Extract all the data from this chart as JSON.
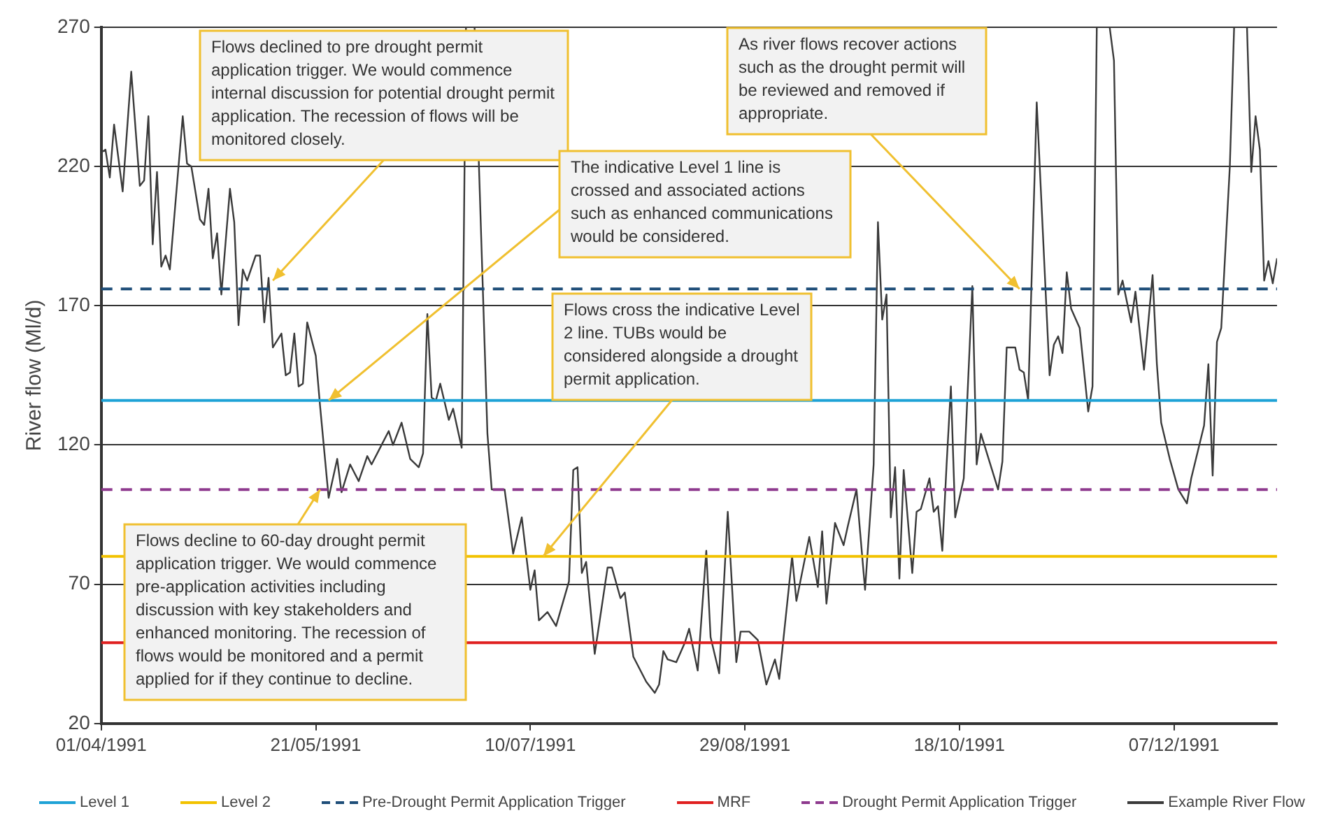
{
  "chart_data": {
    "type": "line",
    "ylabel": "River flow (Ml/d)",
    "xlim": [
      "1991-04-01",
      "1991-12-31"
    ],
    "xticks": [
      {
        "value": "1991-04-01",
        "label": "01/04/1991"
      },
      {
        "value": "1991-05-21",
        "label": "21/05/1991"
      },
      {
        "value": "1991-07-10",
        "label": "10/07/1991"
      },
      {
        "value": "1991-08-29",
        "label": "29/08/1991"
      },
      {
        "value": "1991-10-18",
        "label": "18/10/1991"
      },
      {
        "value": "1991-12-07",
        "label": "07/12/1991"
      }
    ],
    "ylim": [
      20,
      270
    ],
    "yticks": [
      20,
      70,
      120,
      170,
      220,
      270
    ],
    "grid": "y",
    "legend": "bottom",
    "x": [
      "1991-04-01",
      "1991-04-02",
      "1991-04-03",
      "1991-04-04",
      "1991-04-06",
      "1991-04-08",
      "1991-04-10",
      "1991-04-11",
      "1991-04-12",
      "1991-04-13",
      "1991-04-14",
      "1991-04-15",
      "1991-04-16",
      "1991-04-17",
      "1991-04-20",
      "1991-04-21",
      "1991-04-22",
      "1991-04-24",
      "1991-04-25",
      "1991-04-26",
      "1991-04-27",
      "1991-04-28",
      "1991-04-29",
      "1991-05-01",
      "1991-05-02",
      "1991-05-03",
      "1991-05-04",
      "1991-05-05",
      "1991-05-07",
      "1991-05-08",
      "1991-05-09",
      "1991-05-10",
      "1991-05-11",
      "1991-05-13",
      "1991-05-14",
      "1991-05-15",
      "1991-05-16",
      "1991-05-17",
      "1991-05-18",
      "1991-05-19",
      "1991-05-21",
      "1991-05-22",
      "1991-05-24",
      "1991-05-26",
      "1991-05-27",
      "1991-05-29",
      "1991-05-31",
      "1991-06-02",
      "1991-06-03",
      "1991-06-05",
      "1991-06-07",
      "1991-06-08",
      "1991-06-10",
      "1991-06-12",
      "1991-06-14",
      "1991-06-15",
      "1991-06-16",
      "1991-06-17",
      "1991-06-18",
      "1991-06-19",
      "1991-06-21",
      "1991-06-22",
      "1991-06-24",
      "1991-06-25",
      "1991-06-26",
      "1991-06-27",
      "1991-06-30",
      "1991-07-01",
      "1991-07-04",
      "1991-07-06",
      "1991-07-08",
      "1991-07-10",
      "1991-07-11",
      "1991-07-12",
      "1991-07-14",
      "1991-07-16",
      "1991-07-19",
      "1991-07-20",
      "1991-07-21",
      "1991-07-22",
      "1991-07-23",
      "1991-07-25",
      "1991-07-28",
      "1991-07-29",
      "1991-07-31",
      "1991-08-01",
      "1991-08-03",
      "1991-08-06",
      "1991-08-08",
      "1991-08-09",
      "1991-08-10",
      "1991-08-11",
      "1991-08-13",
      "1991-08-15",
      "1991-08-16",
      "1991-08-18",
      "1991-08-20",
      "1991-08-21",
      "1991-08-23",
      "1991-08-25",
      "1991-08-27",
      "1991-08-28",
      "1991-08-30",
      "1991-09-01",
      "1991-09-03",
      "1991-09-05",
      "1991-09-06",
      "1991-09-09",
      "1991-09-10",
      "1991-09-13",
      "1991-09-15",
      "1991-09-16",
      "1991-09-17",
      "1991-09-19",
      "1991-09-21",
      "1991-09-22",
      "1991-09-24",
      "1991-09-26",
      "1991-09-28",
      "1991-09-29",
      "1991-09-30",
      "1991-10-01",
      "1991-10-02",
      "1991-10-03",
      "1991-10-04",
      "1991-10-05",
      "1991-10-07",
      "1991-10-08",
      "1991-10-09",
      "1991-10-11",
      "1991-10-12",
      "1991-10-13",
      "1991-10-14",
      "1991-10-15",
      "1991-10-16",
      "1991-10-17",
      "1991-10-19",
      "1991-10-21",
      "1991-10-22",
      "1991-10-23",
      "1991-10-25",
      "1991-10-27",
      "1991-10-28",
      "1991-10-29",
      "1991-10-31",
      "1991-11-01",
      "1991-11-02",
      "1991-11-03",
      "1991-11-05",
      "1991-11-08",
      "1991-11-09",
      "1991-11-10",
      "1991-11-11",
      "1991-11-12",
      "1991-11-13",
      "1991-11-15",
      "1991-11-17",
      "1991-11-18",
      "1991-11-19",
      "1991-11-20",
      "1991-11-22",
      "1991-11-23",
      "1991-11-24",
      "1991-11-25",
      "1991-11-27",
      "1991-11-28",
      "1991-11-30",
      "1991-12-02",
      "1991-12-03",
      "1991-12-04",
      "1991-12-06",
      "1991-12-08",
      "1991-12-10",
      "1991-12-11",
      "1991-12-14",
      "1991-12-15",
      "1991-12-16",
      "1991-12-17",
      "1991-12-18",
      "1991-12-20",
      "1991-12-21",
      "1991-12-22",
      "1991-12-24",
      "1991-12-25",
      "1991-12-26",
      "1991-12-27",
      "1991-12-28",
      "1991-12-29",
      "1991-12-30",
      "1991-12-31"
    ],
    "series": [
      {
        "name": "Example River Flow",
        "color": "#3a3a3a",
        "values": [
          225,
          226,
          216,
          235,
          211,
          254,
          213,
          215,
          238,
          192,
          218,
          184,
          188,
          183,
          238,
          221,
          220,
          201,
          199,
          212,
          187,
          196,
          174,
          212,
          200,
          163,
          183,
          179,
          188,
          188,
          164,
          180,
          155,
          160,
          145,
          146,
          160,
          141,
          142,
          164,
          152,
          134,
          101,
          115,
          103,
          113,
          107,
          116,
          113,
          119,
          125,
          120,
          128,
          115,
          112,
          117,
          167,
          137,
          136,
          142,
          129,
          133,
          119,
          270,
          null,
          270,
          124,
          104,
          104,
          81,
          94,
          68,
          75,
          57,
          60,
          55,
          71,
          111,
          112,
          74,
          78,
          45,
          76,
          76,
          65,
          67,
          44,
          35,
          31,
          34,
          46,
          43,
          42,
          49,
          54,
          39,
          82,
          51,
          38,
          96,
          42,
          53,
          53,
          50,
          34,
          43,
          36,
          80,
          64,
          87,
          69,
          89,
          63,
          92,
          84,
          91,
          104,
          68,
          113,
          200,
          165,
          174,
          94,
          112,
          72,
          111,
          74,
          96,
          97,
          108,
          96,
          98,
          82,
          113,
          141,
          94,
          108,
          177,
          113,
          124,
          114,
          104,
          114,
          155,
          155,
          147,
          146,
          136,
          243,
          145,
          156,
          159,
          153,
          182,
          169,
          162,
          132,
          141,
          270,
          null,
          270,
          258,
          174,
          179,
          164,
          175,
          147,
          181,
          149,
          128,
          115,
          104,
          99,
          108,
          127,
          149,
          109,
          157,
          162,
          220,
          270,
          null,
          270,
          218,
          238,
          226,
          179,
          186,
          178,
          187
        ]
      }
    ],
    "ref_lines": [
      {
        "axis": "y",
        "value": 136,
        "label": "Level 1",
        "color": "#1ea2d6",
        "line_style": "solid"
      },
      {
        "axis": "y",
        "value": 80,
        "label": "Level 2",
        "color": "#f2c200",
        "line_style": "solid"
      },
      {
        "axis": "y",
        "value": 176,
        "label": "Pre-Drought Permit Application Trigger",
        "color": "#1f4e79",
        "line_style": "dashed"
      },
      {
        "axis": "y",
        "value": 49,
        "label": "MRF",
        "color": "#e02020",
        "line_style": "solid"
      },
      {
        "axis": "y",
        "value": 104,
        "label": "Drought Permit Application Trigger",
        "color": "#8e3a8e",
        "line_style": "dashed"
      }
    ],
    "annotations": [
      {
        "text": "Flows declined to pre drought permit application trigger. We would commence internal discussion for potential drought permit application. The recession of flows will be monitored closely.",
        "x": "1991-05-11",
        "y": 179
      },
      {
        "text": "The indicative Level 1 line is crossed and associated actions such as enhanced communications would be considered.",
        "x": "1991-05-24",
        "y": 136
      },
      {
        "text": "Flows cross the indicative Level 2 line. TUBs would be considered alongside a drought permit application.",
        "x": "1991-07-13",
        "y": 80
      },
      {
        "text": "Flows decline to 60-day drought permit application trigger. We would commence pre-application activities including discussion with key stakeholders and enhanced monitoring. The recession of flows would be monitored and a permit applied for if they continue to decline.",
        "x": "1991-05-22",
        "y": 104
      },
      {
        "text": "As river flows recover actions such as the drought permit will be reviewed and removed if appropriate.",
        "x": "1991-11-01",
        "y": 176
      }
    ]
  }
}
